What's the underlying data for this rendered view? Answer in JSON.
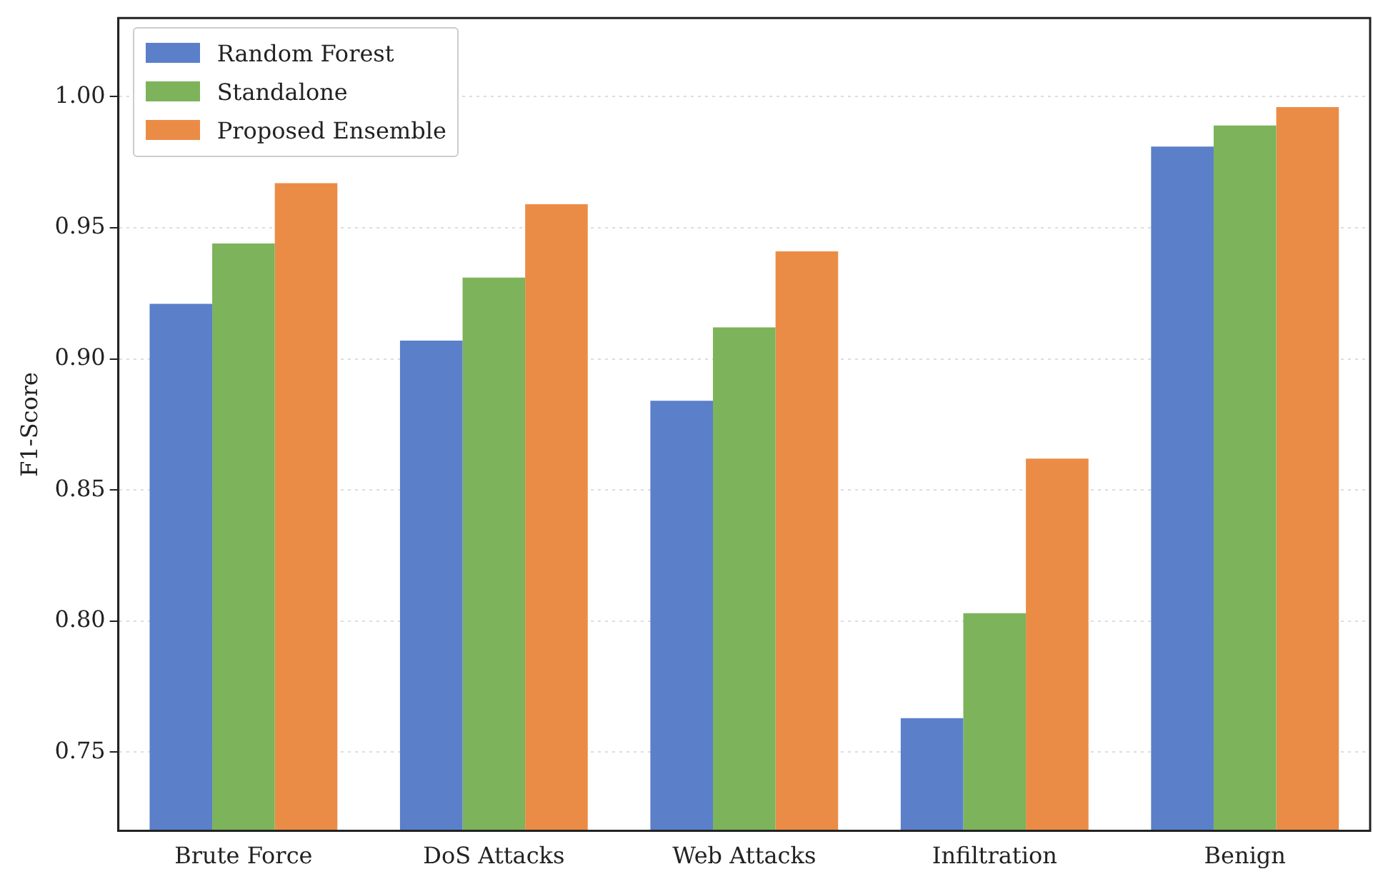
{
  "chart_data": {
    "type": "bar",
    "ylabel": "F1-Score",
    "categories": [
      "Brute Force",
      "DoS Attacks",
      "Web Attacks",
      "Infiltration",
      "Benign"
    ],
    "series": [
      {
        "name": "Random Forest",
        "color": "#5b7fc9",
        "values": [
          0.921,
          0.907,
          0.884,
          0.763,
          0.981
        ]
      },
      {
        "name": "Standalone",
        "color": "#7db35a",
        "values": [
          0.944,
          0.931,
          0.912,
          0.803,
          0.989
        ]
      },
      {
        "name": "Proposed Ensemble",
        "color": "#eb8c46",
        "values": [
          0.967,
          0.959,
          0.941,
          0.862,
          0.996
        ]
      }
    ],
    "ylim": [
      0.72,
      1.03
    ],
    "yticks": [
      {
        "value": 0.75,
        "label": "0.75"
      },
      {
        "value": 0.8,
        "label": "0.80"
      },
      {
        "value": 0.85,
        "label": "0.85"
      },
      {
        "value": 0.9,
        "label": "0.90"
      },
      {
        "value": 0.95,
        "label": "0.95"
      },
      {
        "value": 1,
        "label": "1.00"
      }
    ],
    "grid": "y",
    "legend": "top left"
  }
}
